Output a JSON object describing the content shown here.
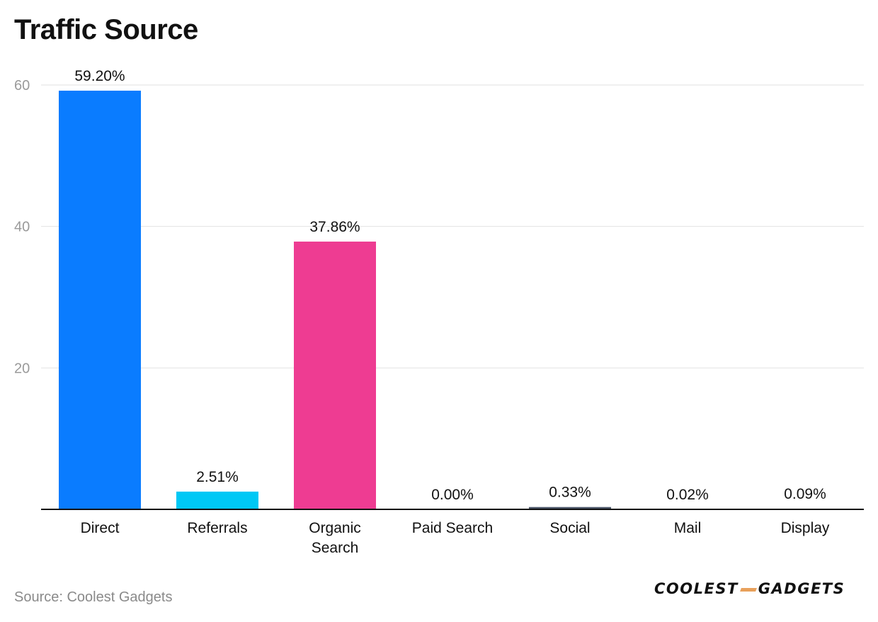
{
  "title": "Traffic Source",
  "source": "Source: Coolest Gadgets",
  "logo": {
    "left": "COOLEST",
    "right": "GADGETS",
    "accent": "#e8a05a"
  },
  "chart_data": {
    "type": "bar",
    "title": "Traffic Source",
    "xlabel": "",
    "ylabel": "",
    "ylim": [
      0,
      60
    ],
    "yticks": [
      20,
      40,
      60
    ],
    "grid": true,
    "categories": [
      [
        "Direct"
      ],
      [
        "Referrals"
      ],
      [
        "Organic",
        "Search"
      ],
      [
        "Paid Search"
      ],
      [
        "Social"
      ],
      [
        "Mail"
      ],
      [
        "Display"
      ]
    ],
    "values": [
      59.2,
      2.51,
      37.86,
      0.0,
      0.33,
      0.02,
      0.09
    ],
    "labels": [
      "59.20%",
      "2.51%",
      "37.86%",
      "0.00%",
      "0.33%",
      "0.02%",
      "0.09%"
    ],
    "colors": [
      "#0a7cff",
      "#00c8f5",
      "#ee3c92",
      "#6c7a89",
      "#4a5568",
      "#6c7a89",
      "#6c7a89"
    ]
  }
}
